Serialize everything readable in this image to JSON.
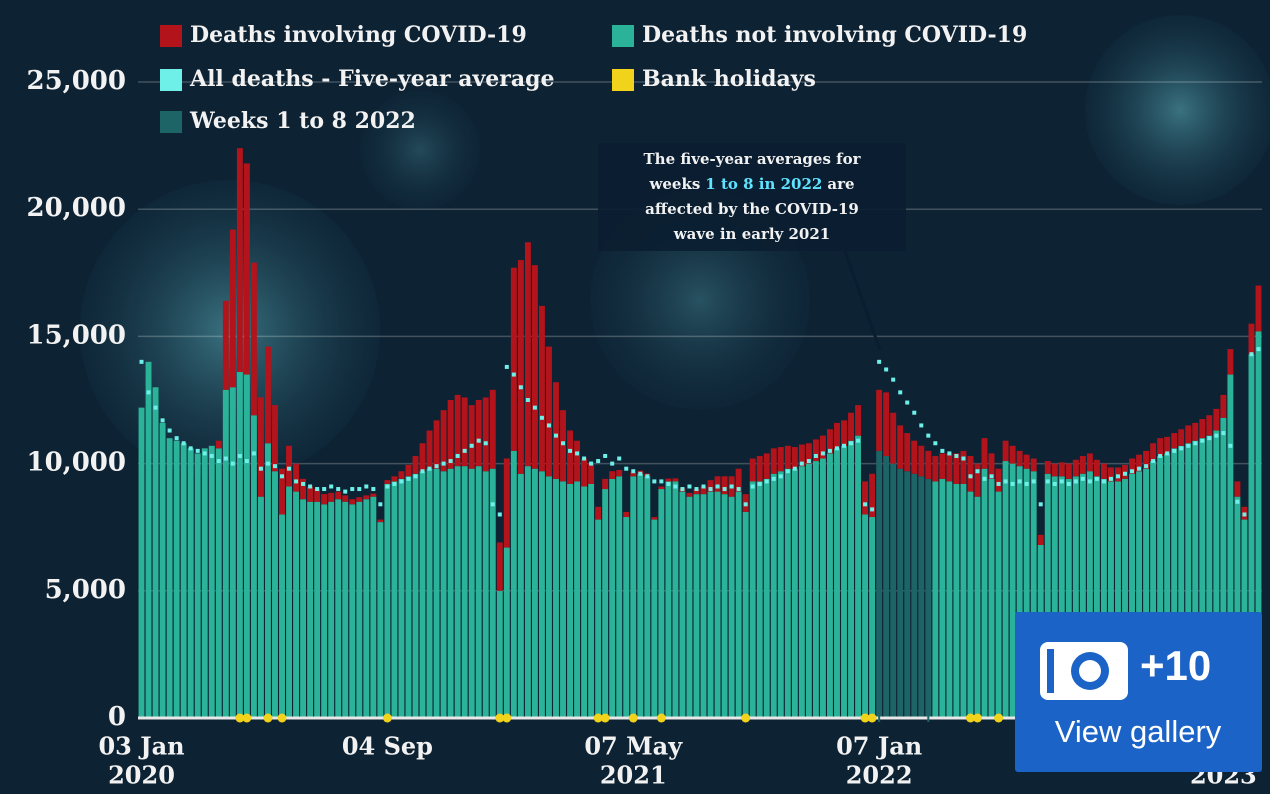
{
  "chart_data": {
    "type": "stacked-bar",
    "series": [
      {
        "name": "Deaths not involving COVID-19",
        "color": "#2bb39a",
        "kind": "bar",
        "values": [
          12200,
          14000,
          13000,
          11600,
          11000,
          10900,
          10800,
          10600,
          10400,
          10600,
          10700,
          10600,
          12900,
          13000,
          13600,
          13500,
          11900,
          8700,
          10800,
          9700,
          8000,
          9100,
          8900,
          8600,
          8500,
          8500,
          8400,
          8500,
          8600,
          8500,
          8400,
          8500,
          8600,
          8700,
          7700,
          9200,
          9300,
          9400,
          9500,
          9600,
          9700,
          9800,
          9800,
          9700,
          9800,
          9900,
          9900,
          9800,
          9900,
          9700,
          9800,
          5000,
          6700,
          10500,
          9600,
          9900,
          9800,
          9700,
          9500,
          9400,
          9300,
          9200,
          9300,
          9100,
          9200,
          7800,
          9000,
          9400,
          9500,
          7900,
          9500,
          9600,
          9500,
          7800,
          9000,
          9300,
          9300,
          8900,
          8700,
          8800,
          8800,
          8900,
          8900,
          8800,
          8700,
          8900,
          8100,
          9300,
          9300,
          9400,
          9600,
          9700,
          9800,
          9800,
          9900,
          10000,
          10100,
          10200,
          10400,
          10600,
          10700,
          10900,
          11100,
          8000,
          7900,
          10500,
          10300,
          10000,
          9800,
          9700,
          9600,
          9500,
          9400,
          9300,
          9400,
          9300,
          9200,
          9200,
          8900,
          8700,
          9800,
          9400,
          8900,
          10100,
          10000,
          9900,
          9800,
          9700,
          6800,
          9600,
          9500,
          9500,
          9400,
          9500,
          9600,
          9700,
          9500,
          9400,
          9300,
          9300,
          9400,
          9600,
          9700,
          9800,
          10100,
          10300,
          10400,
          10600,
          10700,
          10800,
          10900,
          11000,
          11100,
          11300,
          11800,
          13500,
          8700,
          7800,
          14300,
          15200
        ]
      },
      {
        "name": "Deaths involving COVID-19",
        "color": "#b3141b",
        "kind": "bar",
        "values": [
          0,
          0,
          0,
          0,
          0,
          0,
          0,
          0,
          0,
          0,
          0,
          300,
          3500,
          6200,
          8800,
          8300,
          6000,
          3900,
          3800,
          2600,
          1800,
          1600,
          1100,
          800,
          600,
          500,
          400,
          350,
          300,
          250,
          200,
          180,
          150,
          120,
          100,
          150,
          200,
          300,
          450,
          700,
          1100,
          1500,
          1900,
          2400,
          2700,
          2800,
          2700,
          2500,
          2600,
          2900,
          3100,
          1900,
          3500,
          7200,
          8400,
          8800,
          8000,
          6500,
          5100,
          3800,
          2800,
          2100,
          1600,
          1100,
          800,
          500,
          400,
          300,
          250,
          200,
          150,
          120,
          110,
          100,
          100,
          110,
          120,
          130,
          150,
          200,
          300,
          450,
          600,
          700,
          800,
          900,
          700,
          900,
          1000,
          1000,
          1000,
          950,
          900,
          850,
          850,
          800,
          850,
          900,
          950,
          1000,
          1000,
          1100,
          1200,
          1300,
          1700,
          2400,
          2500,
          2000,
          1700,
          1500,
          1300,
          1200,
          1100,
          1000,
          1000,
          1100,
          1200,
          1300,
          1400,
          1300,
          1200,
          1000,
          900,
          800,
          700,
          600,
          550,
          500,
          400,
          500,
          500,
          550,
          600,
          650,
          700,
          700,
          650,
          600,
          550,
          550,
          550,
          600,
          650,
          700,
          700,
          700,
          650,
          600,
          650,
          700,
          700,
          750,
          800,
          850,
          900,
          1000,
          600,
          500,
          1200,
          1800
        ]
      },
      {
        "name": "All deaths - Five-year average",
        "color": "#6ef0e8",
        "kind": "dots",
        "values": [
          14000,
          12800,
          12200,
          11700,
          11300,
          11000,
          10800,
          10600,
          10500,
          10400,
          10300,
          10100,
          10200,
          10000,
          10300,
          10100,
          10400,
          9800,
          10000,
          9900,
          9500,
          9800,
          9300,
          9200,
          9100,
          9000,
          9000,
          9100,
          9000,
          8900,
          9000,
          9000,
          9100,
          9000,
          8400,
          9100,
          9200,
          9300,
          9400,
          9500,
          9700,
          9800,
          9900,
          10000,
          10100,
          10300,
          10500,
          10700,
          10900,
          10800,
          8400,
          8000,
          13800,
          13500,
          13000,
          12500,
          12200,
          11800,
          11500,
          11100,
          10800,
          10500,
          10400,
          10200,
          10000,
          10100,
          10300,
          10000,
          10200,
          9800,
          9700,
          9600,
          9500,
          9300,
          9300,
          9200,
          9100,
          9000,
          9100,
          9000,
          9100,
          9000,
          9100,
          9000,
          9100,
          9000,
          8400,
          9100,
          9200,
          9300,
          9400,
          9500,
          9700,
          9800,
          10000,
          10100,
          10300,
          10400,
          10500,
          10600,
          10700,
          10800,
          10900,
          8400,
          8200,
          14000,
          13700,
          13300,
          12800,
          12400,
          12000,
          11500,
          11100,
          10800,
          10500,
          10400,
          10300,
          10200,
          9500,
          9700,
          9400,
          9500,
          9200,
          9300,
          9200,
          9300,
          9200,
          9300,
          8400,
          9300,
          9200,
          9300,
          9200,
          9300,
          9400,
          9300,
          9400,
          9300,
          9400,
          9500,
          9600,
          9700,
          9800,
          9900,
          10100,
          10300,
          10400,
          10500,
          10600,
          10700,
          10800,
          10900,
          11000,
          11100,
          11200,
          10700,
          8500,
          8000,
          14300,
          14500
        ]
      }
    ],
    "bank_holidays": {
      "name": "Bank holidays",
      "color": "#f2d31b",
      "weeks": [
        14,
        15,
        18,
        20,
        35,
        51,
        52,
        65,
        66,
        70,
        74,
        86,
        103,
        104,
        118,
        119,
        122
      ]
    },
    "weeks_1_to_8_2022": {
      "name": "Weeks 1 to 8 2022",
      "color": "#1d6466",
      "weeks": [
        105,
        112
      ]
    },
    "ylim": [
      0,
      25000
    ],
    "yticks": [
      0,
      {
        "value": 5000,
        "label": "5,000"
      },
      {
        "value": 10000,
        "label": "10,000"
      },
      {
        "value": 15000,
        "label": "15,000"
      },
      {
        "value": 20000,
        "label": "20,000"
      },
      {
        "value": 25000,
        "label": "25,000"
      }
    ],
    "xticks": [
      {
        "value": 0,
        "label": "03 Jan",
        "year": "2020"
      },
      {
        "value": 35,
        "label": "04 Sep"
      },
      {
        "value": 70,
        "label": "07 May",
        "year": "2021"
      },
      {
        "value": 105,
        "label": "07 Jan",
        "year": "2022"
      },
      {
        "value": 154,
        "year": "2023"
      }
    ],
    "grid": true,
    "annotation": {
      "lines": [
        [
          "The five-year averages for"
        ],
        [
          "weeks",
          "1 to 8 in 2022",
          "are"
        ],
        [
          "affected by the COVID-19"
        ],
        [
          "wave in early 2021"
        ]
      ],
      "highlight_color": "#5fe3ff"
    }
  },
  "gallery": {
    "count": "+10",
    "label": "View gallery"
  }
}
